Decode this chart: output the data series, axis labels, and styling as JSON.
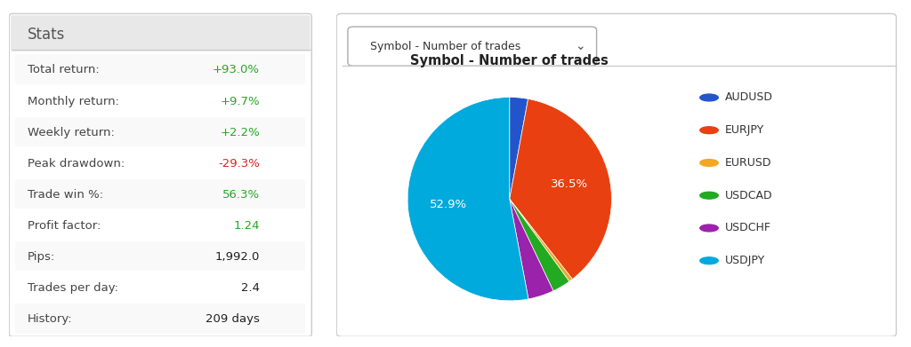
{
  "stats_title": "Stats",
  "stats_rows": [
    {
      "label": "Total return:",
      "value": "+93.0%",
      "color": "#22aa22"
    },
    {
      "label": "Monthly return:",
      "value": "+9.7%",
      "color": "#22aa22"
    },
    {
      "label": "Weekly return:",
      "value": "+2.2%",
      "color": "#22aa22"
    },
    {
      "label": "Peak drawdown:",
      "value": "-29.3%",
      "color": "#dd2222"
    },
    {
      "label": "Trade win %:",
      "value": "56.3%",
      "color": "#22aa22"
    },
    {
      "label": "Profit factor:",
      "value": "1.24",
      "color": "#22aa22"
    },
    {
      "label": "Pips:",
      "value": "1,992.0",
      "color": "#222222"
    },
    {
      "label": "Trades per day:",
      "value": "2.4",
      "color": "#222222"
    },
    {
      "label": "History:",
      "value": "209 days",
      "color": "#222222"
    }
  ],
  "pie_title": "Symbol - Number of trades",
  "dropdown_label": "Symbol - Number of trades",
  "pie_labels": [
    "AUDUSD",
    "EURJPY",
    "EURUSD",
    "USDCAD",
    "USDCHF",
    "USDJPY"
  ],
  "pie_values": [
    2.9,
    36.5,
    0.6,
    2.9,
    4.1,
    52.9
  ],
  "pie_colors": [
    "#2255cc",
    "#e84010",
    "#f5a623",
    "#22aa22",
    "#9b22aa",
    "#00aadd"
  ],
  "pie_text_labels": [
    "",
    "36.5%",
    "",
    "",
    "",
    "52.9%"
  ],
  "background_color": "#ffffff",
  "panel_bg": "#f5f5f5",
  "border_color": "#cccccc"
}
